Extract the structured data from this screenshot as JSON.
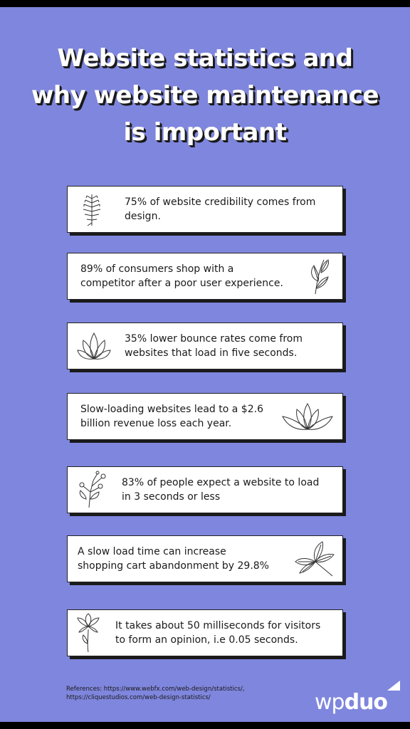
{
  "title": {
    "line1": "Website statistics and",
    "line2": "why website maintenance",
    "line3": "is important"
  },
  "cards": [
    {
      "line1": "75% of website credibility comes from",
      "line2": "design.",
      "icon": "fern-icon",
      "icon_side": "left"
    },
    {
      "line1": "89% of consumers shop with a",
      "line2": "competitor after a poor user experience.",
      "icon": "leaf-stalk-icon",
      "icon_side": "right"
    },
    {
      "line1": "35% lower bounce rates come from",
      "line2": "websites that load in five seconds.",
      "icon": "lotus-icon",
      "icon_side": "left"
    },
    {
      "line1": "Slow-loading websites lead to a $2.6",
      "line2": "billion revenue loss each year.",
      "icon": "water-lily-icon",
      "icon_side": "right"
    },
    {
      "line1": "83% of people expect a website to load",
      "line2": "in 3 seconds or less",
      "icon": "flower-sprig-icon",
      "icon_side": "left"
    },
    {
      "line1": "A slow load time can increase",
      "line2": "shopping cart abandonment by 29.8%",
      "icon": "maple-leaf-icon",
      "icon_side": "right"
    },
    {
      "line1": "It takes about 50 milliseconds for visitors",
      "line2": "to form an opinion,  i.e 0.05 seconds.",
      "icon": "lily-flower-icon",
      "icon_side": "left"
    }
  ],
  "references": {
    "line1": "References: https://www.webfx.com/web-design/statistics/,",
    "line2": "https://cliquestudios.com/web-design-statistics/"
  },
  "logo": {
    "part1": "wp",
    "part2": "duo"
  },
  "colors": {
    "background": "#7f86dd",
    "card": "#ffffff",
    "text": "#1a1a1a",
    "title": "#ffffff"
  }
}
